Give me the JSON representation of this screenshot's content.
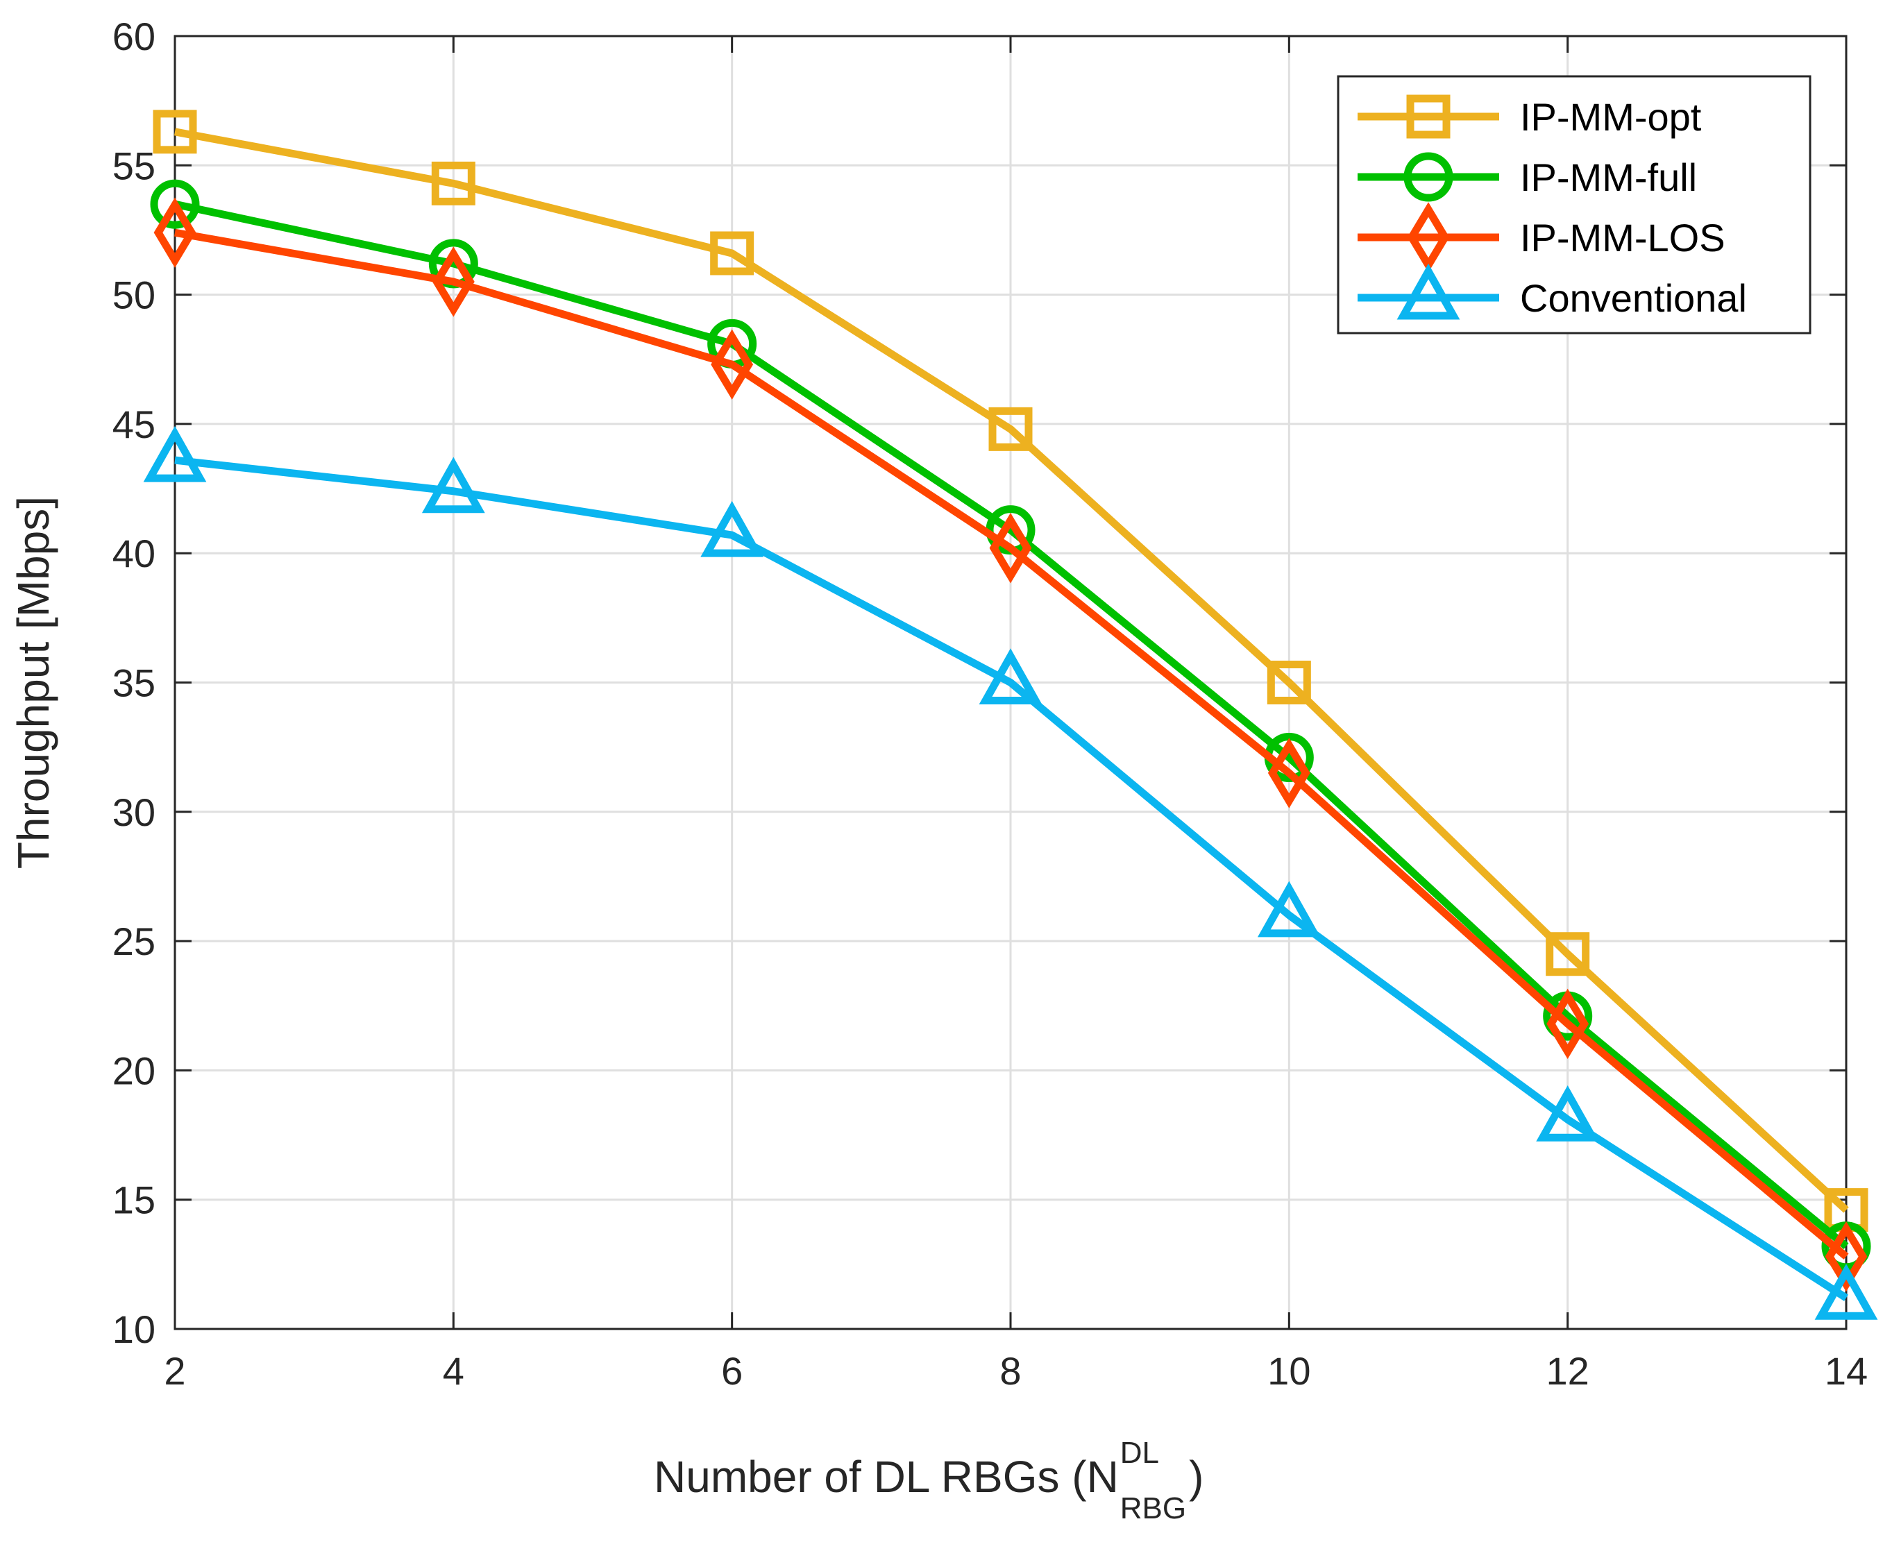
{
  "chart_data": {
    "type": "line",
    "title": "",
    "xlabel": {
      "main": "Number of DL RBGs (N",
      "superscript": "DL",
      "subscript": "RBG",
      "close": ")"
    },
    "ylabel": "Throughput [Mbps]",
    "x": [
      2,
      4,
      6,
      8,
      10,
      12,
      14
    ],
    "xlim": [
      2,
      14
    ],
    "ylim": [
      10,
      60
    ],
    "xticks": [
      2,
      4,
      6,
      8,
      10,
      12,
      14
    ],
    "yticks": [
      10,
      15,
      20,
      25,
      30,
      35,
      40,
      45,
      50,
      55,
      60
    ],
    "grid": true,
    "legend_position": "top-right",
    "series": [
      {
        "name": "IP-MM-opt",
        "color": "#EDB120",
        "marker": "square",
        "values": [
          56.3,
          54.3,
          51.6,
          44.8,
          35.0,
          24.5,
          14.6
        ]
      },
      {
        "name": "IP-MM-full",
        "color": "#00C000",
        "marker": "circle",
        "values": [
          53.5,
          51.2,
          48.1,
          40.9,
          32.1,
          22.1,
          13.2
        ]
      },
      {
        "name": "IP-MM-LOS",
        "color": "#FF4500",
        "marker": "diamond",
        "values": [
          52.4,
          50.5,
          47.3,
          40.2,
          31.5,
          21.8,
          12.8
        ]
      },
      {
        "name": "Conventional",
        "color": "#0BB5F0",
        "marker": "triangle",
        "values": [
          43.6,
          42.4,
          40.7,
          35.0,
          26.0,
          18.1,
          11.2
        ]
      }
    ]
  }
}
